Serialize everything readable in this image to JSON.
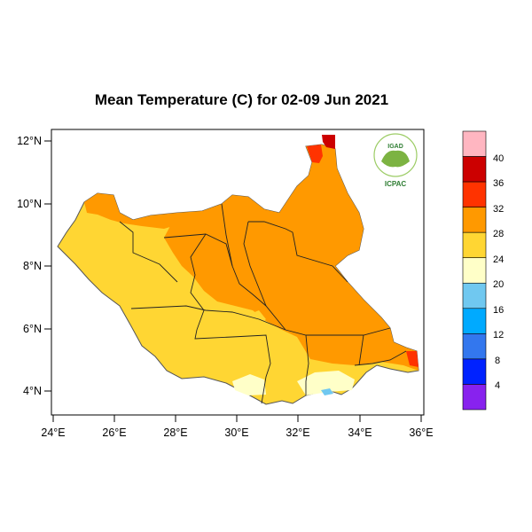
{
  "title": "Mean Temperature (C) for 02-09 Jun 2021",
  "y_ticks": [
    "12°N",
    "10°N",
    "8°N",
    "6°N",
    "4°N"
  ],
  "x_ticks": [
    "24°E",
    "26°E",
    "28°E",
    "30°E",
    "32°E",
    "34°E",
    "36°E"
  ],
  "colorbar": {
    "labels": [
      "40",
      "36",
      "32",
      "28",
      "24",
      "20",
      "16",
      "12",
      "8",
      "4"
    ],
    "colors": [
      "#ffb6c1",
      "#cc0000",
      "#ff3300",
      "#ff9900",
      "#ffd633",
      "#ffffc8",
      "#70c8f0",
      "#00aaff",
      "#3377ee",
      "#0022ff",
      "#8822ee"
    ]
  },
  "logo": {
    "top": "IGAD",
    "bottom": "ICPAC"
  },
  "fill_colors": {
    "band_24_28": "#ffd633",
    "band_28_32": "#ff9900",
    "band_32_36": "#ff3300",
    "band_36_40": "#cc0000",
    "band_20_24": "#ffffc8",
    "band_16_20": "#70c8f0"
  }
}
